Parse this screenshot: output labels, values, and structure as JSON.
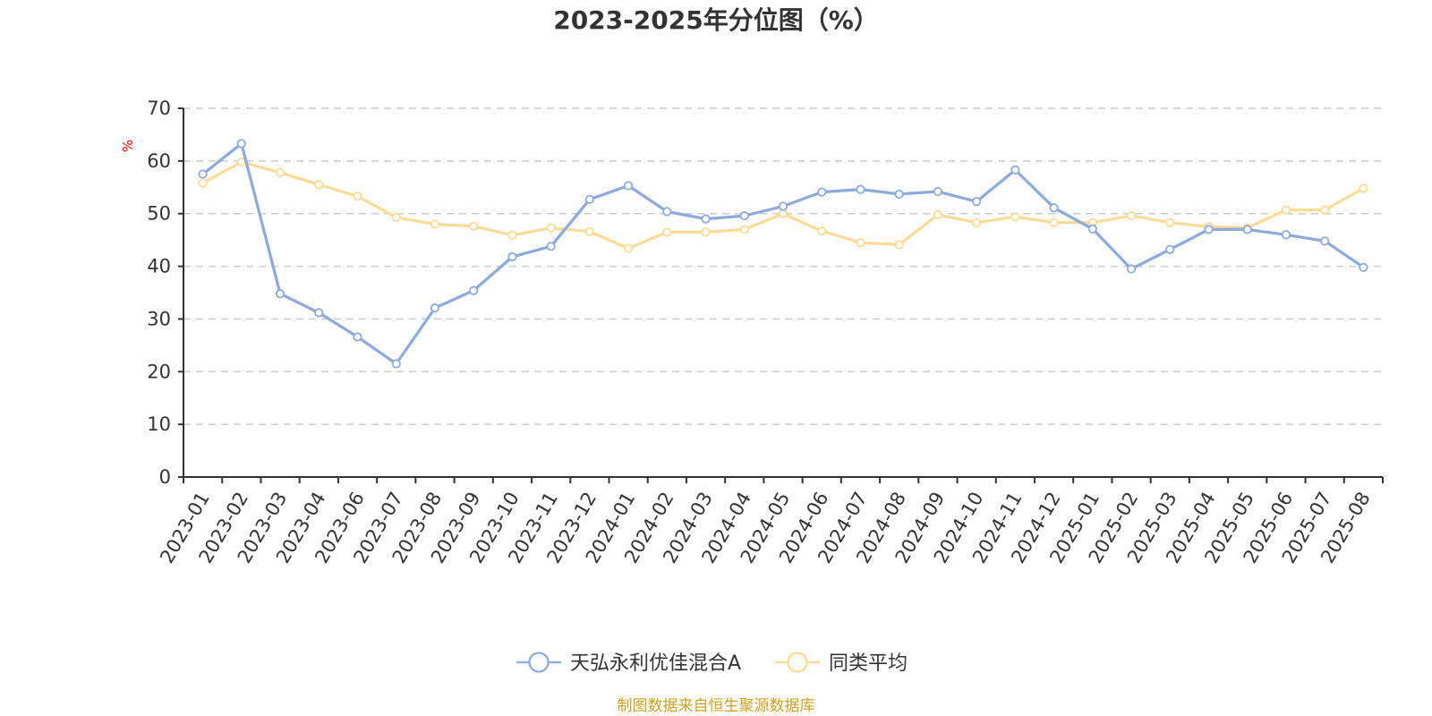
{
  "chart_data": {
    "type": "line",
    "title": "2023-2025年分位图（%）",
    "ylabel": "%",
    "xlabel": "",
    "ylim": [
      0,
      70
    ],
    "yticks": [
      0,
      10,
      20,
      30,
      40,
      50,
      60,
      70
    ],
    "grid": true,
    "legend_position": "bottom",
    "categories": [
      "2023-01",
      "2023-02",
      "2023-03",
      "2023-04",
      "2023-06",
      "2023-07",
      "2023-08",
      "2023-09",
      "2023-10",
      "2023-11",
      "2023-12",
      "2024-01",
      "2024-02",
      "2024-03",
      "2024-04",
      "2024-05",
      "2024-06",
      "2024-07",
      "2024-08",
      "2024-09",
      "2024-10",
      "2024-11",
      "2024-12",
      "2025-01",
      "2025-02",
      "2025-03",
      "2025-04",
      "2025-05",
      "2025-06",
      "2025-07",
      "2025-08"
    ],
    "series": [
      {
        "name": "天弘永利优佳混合A",
        "color": "#8eaadb",
        "values": [
          57.5,
          63.3,
          34.8,
          31.2,
          26.6,
          21.5,
          32.1,
          35.4,
          41.8,
          43.8,
          52.7,
          55.3,
          50.4,
          49.0,
          49.6,
          51.4,
          54.1,
          54.6,
          53.7,
          54.2,
          52.3,
          58.3,
          51.1,
          47.1,
          39.5,
          43.2,
          47.0,
          47.0,
          46.0,
          44.8,
          39.8
        ]
      },
      {
        "name": "同类平均",
        "color": "#fadb98",
        "values": [
          55.8,
          59.8,
          57.8,
          55.5,
          53.3,
          49.3,
          48.0,
          47.6,
          45.9,
          47.3,
          46.6,
          43.4,
          46.5,
          46.5,
          47.0,
          50.0,
          46.7,
          44.5,
          44.1,
          49.8,
          48.3,
          49.4,
          48.3,
          48.3,
          49.6,
          48.3,
          47.5,
          47.3,
          50.7,
          50.7,
          54.8
        ]
      }
    ],
    "source": "制图数据来自恒生聚源数据库",
    "unit_color": "#ff0000",
    "source_color": "#c9a227"
  }
}
